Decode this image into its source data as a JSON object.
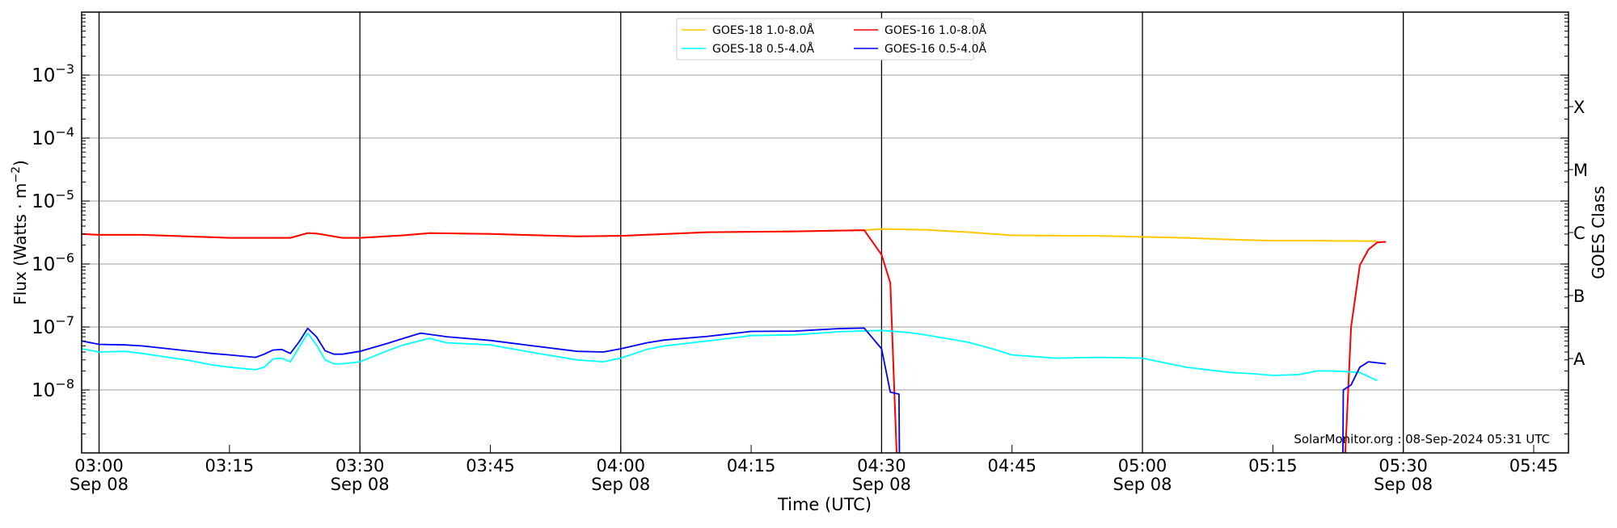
{
  "chart_data": {
    "type": "line",
    "xlabel": "Time (UTC)",
    "ylabel": "Flux (Watts · m",
    "ylabel_sup": "−2",
    "ylabel_close": ")",
    "right_label": "GOES Class",
    "y_scale": "log",
    "ylim": [
      1e-09,
      0.01
    ],
    "xlim": [
      "02:58",
      "05:49"
    ],
    "grid": true,
    "legend_position": "top-center",
    "y_ticks": [
      {
        "base": "10",
        "exp": "−3",
        "value": 0.001
      },
      {
        "base": "10",
        "exp": "−4",
        "value": 0.0001
      },
      {
        "base": "10",
        "exp": "−5",
        "value": 1e-05
      },
      {
        "base": "10",
        "exp": "−6",
        "value": 1e-06
      },
      {
        "base": "10",
        "exp": "−7",
        "value": 1e-07
      },
      {
        "base": "10",
        "exp": "−8",
        "value": 1e-08
      }
    ],
    "x_ticks": [
      {
        "time": "03:00",
        "date": "Sep 08"
      },
      {
        "time": "03:15",
        "date": ""
      },
      {
        "time": "03:30",
        "date": "Sep 08"
      },
      {
        "time": "03:45",
        "date": ""
      },
      {
        "time": "04:00",
        "date": "Sep 08"
      },
      {
        "time": "04:15",
        "date": ""
      },
      {
        "time": "04:30",
        "date": "Sep 08"
      },
      {
        "time": "04:45",
        "date": ""
      },
      {
        "time": "05:00",
        "date": "Sep 08"
      },
      {
        "time": "05:15",
        "date": ""
      },
      {
        "time": "05:30",
        "date": "Sep 08"
      },
      {
        "time": "05:45",
        "date": ""
      }
    ],
    "goes_classes": [
      {
        "label": "X",
        "value": 0.000316
      },
      {
        "label": "M",
        "value": 3.16e-05
      },
      {
        "label": "C",
        "value": 3.16e-06
      },
      {
        "label": "B",
        "value": 3.16e-07
      },
      {
        "label": "A",
        "value": 3.16e-08
      }
    ],
    "series": [
      {
        "name": "GOES-18 1.0-8.0Å",
        "color": "#ffc800",
        "x": [
          "02:58",
          "03:00",
          "03:05",
          "03:10",
          "03:15",
          "03:20",
          "03:22",
          "03:24",
          "03:25",
          "03:28",
          "03:30",
          "03:35",
          "03:38",
          "03:45",
          "03:55",
          "04:00",
          "04:10",
          "04:20",
          "04:28",
          "04:30",
          "04:35",
          "04:40",
          "04:45",
          "04:55",
          "05:00",
          "05:05",
          "05:10",
          "05:15",
          "05:20",
          "05:27"
        ],
        "y": [
          3e-06,
          2.9e-06,
          2.9e-06,
          2.75e-06,
          2.6e-06,
          2.6e-06,
          2.6e-06,
          3.1e-06,
          3.05e-06,
          2.6e-06,
          2.6e-06,
          2.85e-06,
          3.1e-06,
          3e-06,
          2.75e-06,
          2.8e-06,
          3.2e-06,
          3.3e-06,
          3.45e-06,
          3.6e-06,
          3.5e-06,
          3.2e-06,
          2.85e-06,
          2.8e-06,
          2.7e-06,
          2.6e-06,
          2.45e-06,
          2.35e-06,
          2.35e-06,
          2.3e-06
        ]
      },
      {
        "name": "GOES-16 1.0-8.0Å",
        "color": "#ff0000",
        "x": [
          "02:58",
          "03:00",
          "03:05",
          "03:10",
          "03:15",
          "03:20",
          "03:22",
          "03:24",
          "03:25",
          "03:28",
          "03:30",
          "03:35",
          "03:38",
          "03:45",
          "03:55",
          "04:00",
          "04:10",
          "04:20",
          "04:28",
          "04:30",
          "04:31",
          "04:32",
          "05:23",
          "05:24",
          "05:25",
          "05:26",
          "05:27",
          "05:28"
        ],
        "y": [
          3e-06,
          2.9e-06,
          2.9e-06,
          2.75e-06,
          2.6e-06,
          2.6e-06,
          2.6e-06,
          3.1e-06,
          3.05e-06,
          2.6e-06,
          2.6e-06,
          2.85e-06,
          3.1e-06,
          3e-06,
          2.75e-06,
          2.8e-06,
          3.2e-06,
          3.3e-06,
          3.45e-06,
          1.4e-06,
          5e-07,
          1e-10,
          1e-10,
          1e-07,
          9.5e-07,
          1.7e-06,
          2.2e-06,
          2.25e-06
        ]
      },
      {
        "name": "GOES-18 0.5-4.0Å",
        "color": "#00ffff",
        "x": [
          "02:58",
          "03:00",
          "03:03",
          "03:05",
          "03:08",
          "03:10",
          "03:13",
          "03:15",
          "03:18",
          "03:19",
          "03:20",
          "03:21",
          "03:22",
          "03:24",
          "03:25",
          "03:26",
          "03:27",
          "03:28",
          "03:30",
          "03:33",
          "03:35",
          "03:38",
          "03:40",
          "03:45",
          "03:50",
          "03:55",
          "03:58",
          "04:00",
          "04:03",
          "04:05",
          "04:10",
          "04:15",
          "04:20",
          "04:25",
          "04:30",
          "04:33",
          "04:35",
          "04:40",
          "04:43",
          "04:45",
          "04:50",
          "04:55",
          "05:00",
          "05:02",
          "05:05",
          "05:10",
          "05:13",
          "05:15",
          "05:18",
          "05:20",
          "05:22",
          "05:25",
          "05:27"
        ],
        "y": [
          4.5e-08,
          4e-08,
          4.1e-08,
          3.8e-08,
          3.3e-08,
          3e-08,
          2.5e-08,
          2.3e-08,
          2.1e-08,
          2.3e-08,
          3.1e-08,
          3.2e-08,
          2.8e-08,
          8e-08,
          5.2e-08,
          3e-08,
          2.6e-08,
          2.6e-08,
          2.8e-08,
          4.1e-08,
          5.2e-08,
          6.6e-08,
          5.6e-08,
          5.2e-08,
          3.9e-08,
          3e-08,
          2.8e-08,
          3.2e-08,
          4.4e-08,
          5e-08,
          6e-08,
          7.3e-08,
          7.5e-08,
          8.4e-08,
          8.8e-08,
          8.2e-08,
          7.5e-08,
          5.7e-08,
          4.4e-08,
          3.6e-08,
          3.2e-08,
          3.3e-08,
          3.2e-08,
          2.8e-08,
          2.3e-08,
          1.9e-08,
          1.8e-08,
          1.7e-08,
          1.75e-08,
          2e-08,
          2e-08,
          1.9e-08,
          1.4e-08
        ]
      },
      {
        "name": "GOES-16 0.5-4.0Å",
        "color": "#0000ff",
        "x": [
          "02:58",
          "03:00",
          "03:03",
          "03:05",
          "03:08",
          "03:10",
          "03:13",
          "03:15",
          "03:18",
          "03:19",
          "03:20",
          "03:21",
          "03:22",
          "03:23",
          "03:24",
          "03:25",
          "03:26",
          "03:27",
          "03:28",
          "03:30",
          "03:33",
          "03:35",
          "03:37",
          "03:40",
          "03:45",
          "03:50",
          "03:55",
          "03:58",
          "04:00",
          "04:03",
          "04:05",
          "04:10",
          "04:15",
          "04:20",
          "04:25",
          "04:28",
          "04:30",
          "04:31",
          "04:32",
          "04:32.1",
          "05:23",
          "05:23.1",
          "05:24",
          "05:25",
          "05:26",
          "05:28"
        ],
        "y": [
          6e-08,
          5.3e-08,
          5.2e-08,
          5e-08,
          4.5e-08,
          4.2e-08,
          3.8e-08,
          3.6e-08,
          3.3e-08,
          3.7e-08,
          4.3e-08,
          4.4e-08,
          3.8e-08,
          5.8e-08,
          9.5e-08,
          7e-08,
          4.2e-08,
          3.7e-08,
          3.7e-08,
          4.1e-08,
          5.4e-08,
          6.6e-08,
          8e-08,
          7e-08,
          6.1e-08,
          5e-08,
          4.1e-08,
          4e-08,
          4.5e-08,
          5.6e-08,
          6.2e-08,
          7.1e-08,
          8.5e-08,
          8.6e-08,
          9.4e-08,
          9.6e-08,
          4.5e-08,
          9.2e-09,
          8.6e-09,
          1e-10,
          1e-10,
          1e-08,
          1.2e-08,
          2.3e-08,
          2.8e-08,
          2.6e-08
        ]
      }
    ],
    "legend_order": [
      0,
      2,
      1,
      3
    ],
    "annotation": "SolarMonitor.org : 08-Sep-2024 05:31 UTC"
  }
}
